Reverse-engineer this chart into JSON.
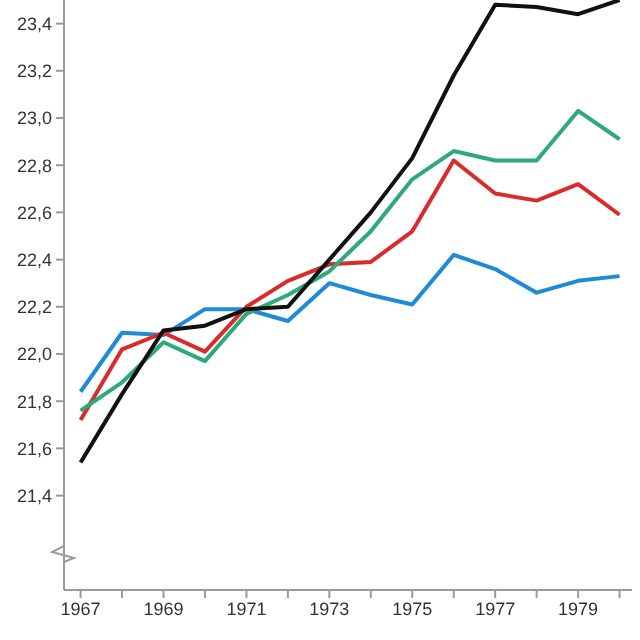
{
  "chart_data": {
    "type": "line",
    "x": [
      1967,
      1968,
      1969,
      1970,
      1971,
      1972,
      1973,
      1974,
      1975,
      1976,
      1977,
      1978,
      1979,
      1980
    ],
    "series": [
      {
        "color": "#1f8ad6",
        "values": [
          21.84,
          22.09,
          22.08,
          22.19,
          22.19,
          22.14,
          22.3,
          22.25,
          22.21,
          22.42,
          22.36,
          22.26,
          22.31,
          22.33
        ]
      },
      {
        "color": "#d92b2b",
        "values": [
          21.72,
          22.02,
          22.09,
          22.01,
          22.2,
          22.31,
          22.38,
          22.39,
          22.52,
          22.82,
          22.68,
          22.65,
          22.72,
          22.59
        ]
      },
      {
        "color": "#2daa7a",
        "values": [
          21.76,
          21.88,
          22.05,
          21.97,
          22.17,
          22.25,
          22.35,
          22.52,
          22.74,
          22.86,
          22.82,
          22.82,
          23.03,
          22.91
        ]
      },
      {
        "color": "#111111",
        "values": [
          21.54,
          21.83,
          22.1,
          22.12,
          22.19,
          22.2,
          22.4,
          22.6,
          22.83,
          23.18,
          23.48,
          23.47,
          23.44,
          23.5
        ]
      }
    ],
    "xlim": [
      1966.6,
      1980.3
    ],
    "ylim": [
      21.0,
      23.5
    ],
    "xticks": [
      1967,
      {
        "value": 1968,
        "label": null
      },
      1969,
      {
        "value": 1970,
        "label": null
      },
      1971,
      {
        "value": 1972,
        "label": null
      },
      1973,
      {
        "value": 1974,
        "label": null
      },
      1975,
      {
        "value": 1976,
        "label": null
      },
      1977,
      {
        "value": 1978,
        "label": null
      },
      1979,
      {
        "value": 1980,
        "label": null
      }
    ],
    "yticks": [
      {
        "value": 21.4,
        "label": "21,4"
      },
      {
        "value": 21.6,
        "label": "21,6"
      },
      {
        "value": 21.8,
        "label": "21,8"
      },
      {
        "value": 22.0,
        "label": "22,0"
      },
      {
        "value": 22.2,
        "label": "22,2"
      },
      {
        "value": 22.4,
        "label": "22,4"
      },
      {
        "value": 22.6,
        "label": "22,6"
      },
      {
        "value": 22.8,
        "label": "22,8"
      },
      {
        "value": 23.0,
        "label": "23,0"
      },
      {
        "value": 23.2,
        "label": "23,2"
      },
      {
        "value": 23.4,
        "label": "23,4"
      }
    ],
    "grid": false,
    "legend": false,
    "marker": "none",
    "line_style": "solid"
  }
}
